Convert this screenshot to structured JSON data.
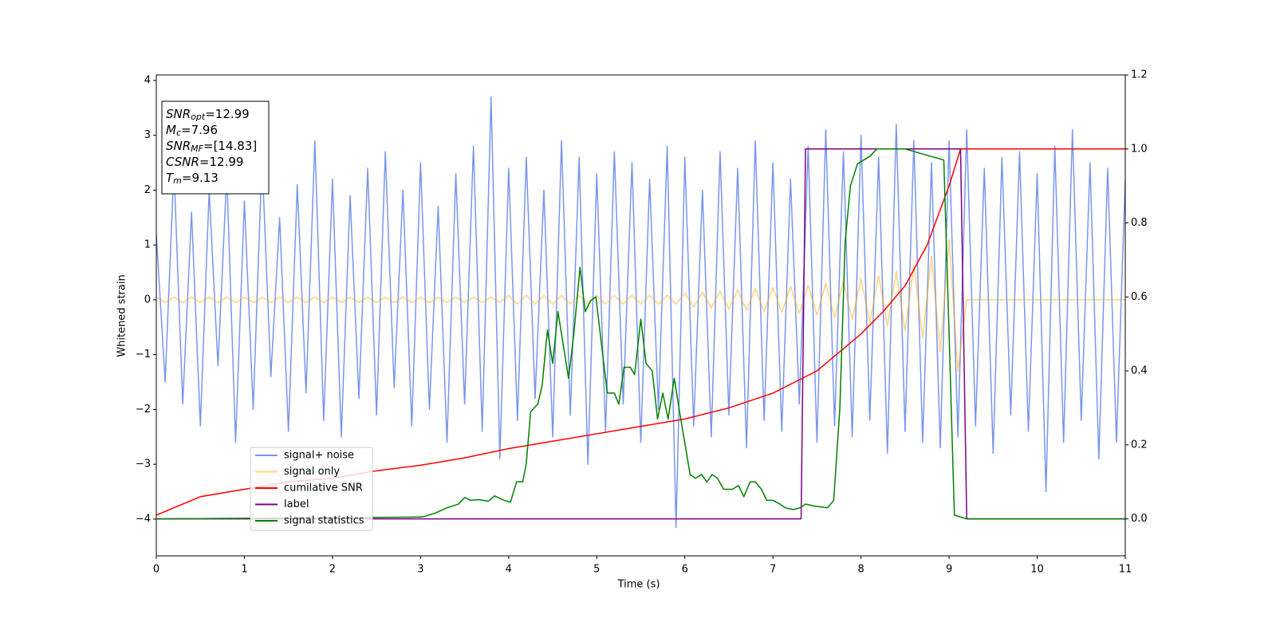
{
  "chart_data": {
    "type": "line",
    "xlabel": "Time (s)",
    "ylabel": "Whitened strain",
    "xlim": [
      0,
      11
    ],
    "xticks": [
      0,
      1,
      2,
      3,
      4,
      5,
      6,
      7,
      8,
      9,
      10,
      11
    ],
    "ylim": [
      -4.67,
      4.1
    ],
    "yticks": [
      {
        "value": -4,
        "label": "−4"
      },
      {
        "value": -3,
        "label": "−3"
      },
      {
        "value": -2,
        "label": "−2"
      },
      {
        "value": -1,
        "label": "−1"
      },
      0,
      1,
      2,
      3,
      4
    ],
    "y2lim": [
      -0.1,
      1.2
    ],
    "y2ticks": [
      {
        "value": 0,
        "label": "0.0"
      },
      0.2,
      0.4,
      0.6,
      0.8,
      {
        "value": 1,
        "label": "1.0"
      },
      1.2
    ],
    "legend": "lower left",
    "annotations": [
      {
        "text": "SNR",
        "sub": "opt",
        "rest": "=12.99"
      },
      {
        "text": "M",
        "sub": "c",
        "rest": "=7.96"
      },
      {
        "text": "SNR",
        "sub": "MF",
        "rest": "=[14.83]"
      },
      {
        "text": "CSNR",
        "rest": "=12.99"
      },
      {
        "text": "T",
        "sub": "m",
        "rest": "=9.13"
      }
    ],
    "series": [
      {
        "name": "signal+ noise",
        "color": "#4169e1",
        "alpha": 0.7,
        "x": [
          0,
          0.1,
          0.2,
          0.3,
          0.4,
          0.5,
          0.6,
          0.7,
          0.8,
          0.9,
          1,
          1.1,
          1.2,
          1.3,
          1.4,
          1.5,
          1.6,
          1.7,
          1.8,
          1.9,
          2,
          2.1,
          2.2,
          2.3,
          2.4,
          2.5,
          2.6,
          2.7,
          2.8,
          2.9,
          3,
          3.1,
          3.2,
          3.3,
          3.4,
          3.5,
          3.6,
          3.7,
          3.8,
          3.9,
          4,
          4.1,
          4.2,
          4.3,
          4.4,
          4.5,
          4.6,
          4.7,
          4.8,
          4.9,
          5,
          5.1,
          5.2,
          5.3,
          5.4,
          5.5,
          5.6,
          5.7,
          5.8,
          5.9,
          6,
          6.1,
          6.2,
          6.3,
          6.4,
          6.5,
          6.6,
          6.7,
          6.8,
          6.9,
          7,
          7.1,
          7.2,
          7.3,
          7.4,
          7.5,
          7.6,
          7.7,
          7.8,
          7.9,
          8,
          8.1,
          8.2,
          8.3,
          8.4,
          8.5,
          8.6,
          8.7,
          8.8,
          8.9,
          9,
          9.1,
          9.2,
          9.3,
          9.4,
          9.5,
          9.6,
          9.7,
          9.8,
          9.9,
          10,
          10.1,
          10.2,
          10.3,
          10.4,
          10.5,
          10.6,
          10.7,
          10.8,
          10.9,
          11
        ],
        "values": [
          1.2,
          -1.5,
          2.4,
          -1.9,
          1.6,
          -2.3,
          2.0,
          -1.2,
          2.3,
          -2.6,
          1.8,
          -2.0,
          2.6,
          -1.4,
          1.5,
          -2.4,
          2.1,
          -1.7,
          2.9,
          -2.2,
          2.2,
          -2.5,
          1.9,
          -1.8,
          2.4,
          -2.1,
          2.7,
          -1.6,
          2.0,
          -2.3,
          2.5,
          -2.0,
          1.7,
          -2.6,
          2.3,
          -1.9,
          2.8,
          -2.4,
          3.7,
          -2.9,
          2.4,
          -2.2,
          2.6,
          -1.8,
          2.0,
          -2.5,
          2.9,
          -2.1,
          2.6,
          -3.0,
          2.3,
          -2.4,
          2.7,
          -1.9,
          2.5,
          -2.6,
          2.2,
          -2.0,
          2.8,
          -4.15,
          2.6,
          -2.3,
          2.0,
          -2.5,
          2.7,
          -2.1,
          2.4,
          -2.7,
          2.9,
          -2.2,
          2.5,
          -2.4,
          2.2,
          -1.9,
          2.8,
          -2.6,
          3.1,
          -2.3,
          2.7,
          -2.5,
          3.0,
          -2.2,
          2.6,
          -2.8,
          3.2,
          -2.4,
          2.9,
          -2.6,
          2.5,
          -2.7,
          2.9,
          -2.5,
          3.1,
          -2.3,
          2.4,
          -2.8,
          2.6,
          -2.1,
          2.7,
          -2.4,
          2.3,
          -3.5,
          2.8,
          -2.6,
          3.1,
          -2.2,
          2.5,
          -2.9,
          2.4,
          -2.6,
          2.2
        ]
      },
      {
        "name": "signal only",
        "color": "#ffa500",
        "alpha": 0.5,
        "x": [
          0,
          0.1,
          0.2,
          0.3,
          0.4,
          0.5,
          0.6,
          0.7,
          0.8,
          0.9,
          1,
          1.1,
          1.2,
          1.3,
          1.4,
          1.5,
          1.6,
          1.7,
          1.8,
          1.9,
          2,
          2.1,
          2.2,
          2.3,
          2.4,
          2.5,
          2.6,
          2.7,
          2.8,
          2.9,
          3,
          3.1,
          3.2,
          3.3,
          3.4,
          3.5,
          3.6,
          3.7,
          3.8,
          3.9,
          4,
          4.1,
          4.2,
          4.3,
          4.4,
          4.5,
          4.6,
          4.7,
          4.8,
          4.9,
          5,
          5.1,
          5.2,
          5.3,
          5.4,
          5.5,
          5.6,
          5.7,
          5.8,
          5.9,
          6,
          6.1,
          6.2,
          6.3,
          6.4,
          6.5,
          6.6,
          6.7,
          6.8,
          6.9,
          7,
          7.1,
          7.2,
          7.3,
          7.4,
          7.5,
          7.6,
          7.7,
          7.8,
          7.9,
          8,
          8.1,
          8.2,
          8.3,
          8.4,
          8.5,
          8.6,
          8.7,
          8.8,
          8.9,
          9,
          9.1,
          9.2,
          9.3,
          9.4,
          9.5,
          9.6,
          9.7,
          9.8,
          9.9,
          10,
          10.1,
          10.2,
          10.3,
          10.4,
          10.5,
          10.6,
          10.7,
          10.8,
          10.9,
          11
        ],
        "values": [
          0.05,
          -0.05,
          0.05,
          -0.05,
          0.05,
          -0.05,
          0.05,
          -0.05,
          0.05,
          -0.05,
          0.05,
          -0.05,
          0.05,
          -0.05,
          0.05,
          -0.05,
          0.05,
          -0.05,
          0.05,
          -0.05,
          0.05,
          -0.05,
          0.05,
          -0.05,
          0.05,
          -0.05,
          0.05,
          -0.05,
          0.05,
          -0.05,
          0.05,
          -0.05,
          0.05,
          -0.05,
          0.05,
          -0.05,
          0.05,
          -0.05,
          0.05,
          -0.05,
          0.08,
          -0.08,
          0.08,
          -0.08,
          0.08,
          -0.08,
          0.08,
          -0.08,
          0.08,
          -0.08,
          0.08,
          -0.08,
          0.08,
          -0.08,
          0.08,
          -0.08,
          0.08,
          -0.08,
          0.08,
          -0.08,
          0.12,
          -0.13,
          0.14,
          -0.15,
          0.16,
          -0.17,
          0.18,
          -0.19,
          0.2,
          -0.21,
          0.22,
          -0.23,
          0.24,
          -0.25,
          0.27,
          -0.28,
          0.3,
          -0.32,
          0.34,
          -0.36,
          0.38,
          -0.41,
          0.44,
          -0.48,
          0.52,
          -0.57,
          0.63,
          -0.7,
          0.8,
          -0.95,
          1.1,
          -1.3,
          0,
          0,
          0,
          0,
          0,
          0,
          0,
          0,
          0,
          0,
          0,
          0,
          0,
          0,
          0,
          0,
          0,
          0,
          0
        ]
      },
      {
        "name": "cumilative SNR",
        "color": "#ff0000",
        "axis": "y2",
        "x": [
          0,
          0.5,
          1,
          1.5,
          2,
          2.5,
          3,
          3.5,
          4,
          4.5,
          5,
          5.5,
          6,
          6.5,
          7,
          7.5,
          8,
          8.25,
          8.5,
          8.75,
          9,
          9.13,
          11
        ],
        "values": [
          0.01,
          0.06,
          0.08,
          0.1,
          0.11,
          0.13,
          0.145,
          0.165,
          0.19,
          0.21,
          0.23,
          0.25,
          0.27,
          0.3,
          0.34,
          0.4,
          0.5,
          0.56,
          0.63,
          0.74,
          0.9,
          1.0,
          1.0
        ]
      },
      {
        "name": "label",
        "color": "#800080",
        "axis": "y2",
        "x": [
          0,
          7.32,
          7.37,
          9.13,
          9.2,
          11
        ],
        "values": [
          0,
          0,
          1,
          1,
          0,
          0
        ]
      },
      {
        "name": "signal statistics",
        "color": "#008000",
        "axis": "y2",
        "x": [
          0,
          3.02,
          3.16,
          3.3,
          3.43,
          3.5,
          3.57,
          3.66,
          3.77,
          3.84,
          3.95,
          4.02,
          4.09,
          4.16,
          4.2,
          4.25,
          4.33,
          4.38,
          4.44,
          4.5,
          4.56,
          4.62,
          4.68,
          4.74,
          4.81,
          4.87,
          4.93,
          4.99,
          5.05,
          5.12,
          5.2,
          5.25,
          5.31,
          5.38,
          5.43,
          5.5,
          5.56,
          5.63,
          5.69,
          5.75,
          5.81,
          5.88,
          5.94,
          6.06,
          6.12,
          6.19,
          6.25,
          6.31,
          6.37,
          6.44,
          6.54,
          6.61,
          6.67,
          6.74,
          6.8,
          6.87,
          6.93,
          7.0,
          7.08,
          7.14,
          7.23,
          7.31,
          7.37,
          7.46,
          7.62,
          7.69,
          7.76,
          7.82,
          7.88,
          7.96,
          8.1,
          8.18,
          8.5,
          8.94,
          9.0,
          9.06,
          9.2,
          11
        ],
        "values": [
          0,
          0.005,
          0.015,
          0.03,
          0.04,
          0.058,
          0.05,
          0.052,
          0.048,
          0.062,
          0.05,
          0.045,
          0.1,
          0.1,
          0.15,
          0.29,
          0.31,
          0.36,
          0.51,
          0.42,
          0.56,
          0.47,
          0.38,
          0.5,
          0.68,
          0.56,
          0.59,
          0.6,
          0.48,
          0.34,
          0.34,
          0.31,
          0.41,
          0.41,
          0.39,
          0.54,
          0.42,
          0.4,
          0.27,
          0.34,
          0.27,
          0.38,
          0.29,
          0.12,
          0.11,
          0.12,
          0.1,
          0.12,
          0.11,
          0.08,
          0.08,
          0.09,
          0.06,
          0.1,
          0.1,
          0.08,
          0.05,
          0.05,
          0.04,
          0.03,
          0.025,
          0.03,
          0.04,
          0.035,
          0.03,
          0.05,
          0.3,
          0.75,
          0.9,
          0.96,
          0.98,
          1.0,
          1.0,
          0.97,
          0.5,
          0.01,
          0,
          0
        ]
      }
    ]
  }
}
